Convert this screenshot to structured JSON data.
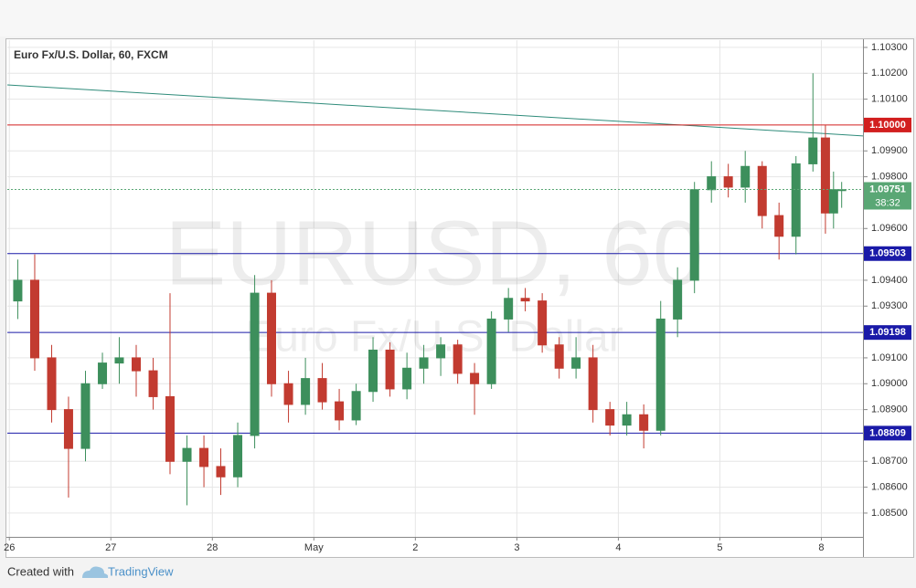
{
  "chart_data": {
    "type": "candlestick",
    "title": "Euro Fx/U.S. Dollar, 60, FXCM",
    "watermark": "EURUSD, 60",
    "watermark_subtitle": "Euro Fx/U.S. Dollar",
    "up_color": "#3d8f5c",
    "down_color": "#c23b30",
    "x": [
      0.083,
      0.25,
      0.417,
      0.583,
      0.75,
      0.917,
      1.083,
      1.25,
      1.417,
      1.583,
      1.75,
      1.917,
      2.083,
      2.25,
      2.417,
      2.583,
      2.75,
      2.917,
      3.083,
      3.25,
      3.417,
      3.583,
      3.75,
      3.917,
      4.083,
      4.25,
      4.417,
      4.583,
      4.75,
      4.917,
      5.083,
      5.25,
      5.417,
      5.583,
      5.75,
      5.917,
      6.083,
      6.25,
      6.417,
      6.583,
      6.75,
      6.917,
      7.083,
      7.25,
      7.417,
      7.583,
      7.75,
      7.917,
      8.04,
      8.12,
      8.2
    ],
    "open": [
      1.0932,
      1.094,
      1.091,
      1.089,
      1.0875,
      1.09,
      1.0908,
      1.091,
      1.0905,
      1.0895,
      1.087,
      1.0875,
      1.0868,
      1.0864,
      1.088,
      1.0935,
      1.09,
      1.0892,
      1.0902,
      1.0893,
      1.0886,
      1.0897,
      1.0913,
      1.0898,
      1.0906,
      1.091,
      1.0915,
      1.0904,
      1.09,
      1.0925,
      1.0933,
      1.0932,
      1.0915,
      1.0906,
      1.091,
      1.089,
      1.0884,
      1.0888,
      1.0882,
      1.0925,
      1.094,
      1.0975,
      1.098,
      1.0976,
      1.0984,
      1.0965,
      1.0957,
      1.0985,
      1.0995,
      1.0966,
      1.0975
    ],
    "high": [
      1.0948,
      1.095,
      1.0915,
      1.0895,
      1.0905,
      1.0912,
      1.0918,
      1.0915,
      1.091,
      1.0935,
      1.088,
      1.088,
      1.0875,
      1.0885,
      1.0942,
      1.094,
      1.0905,
      1.091,
      1.0908,
      1.0898,
      1.09,
      1.0918,
      1.0916,
      1.0912,
      1.0915,
      1.0918,
      1.0917,
      1.0908,
      1.0928,
      1.0937,
      1.0937,
      1.0935,
      1.0918,
      1.0918,
      1.0915,
      1.0893,
      1.0893,
      1.0892,
      1.0932,
      1.0945,
      1.0978,
      1.0986,
      1.0985,
      1.099,
      1.0986,
      1.097,
      1.0988,
      1.102,
      1.1,
      1.0982,
      1.0978
    ],
    "low": [
      1.0925,
      1.0905,
      1.0885,
      1.0856,
      1.087,
      1.0898,
      1.09,
      1.0895,
      1.089,
      1.0865,
      1.0853,
      1.086,
      1.0857,
      1.086,
      1.0875,
      1.0895,
      1.0885,
      1.0888,
      1.089,
      1.0882,
      1.0884,
      1.0893,
      1.0895,
      1.0894,
      1.09,
      1.0903,
      1.09,
      1.0888,
      1.0898,
      1.092,
      1.0928,
      1.0912,
      1.0902,
      1.0902,
      1.0885,
      1.088,
      1.088,
      1.0875,
      1.088,
      1.0918,
      1.0935,
      1.097,
      1.0972,
      1.097,
      1.096,
      1.0948,
      1.095,
      1.0982,
      1.0958,
      1.096,
      1.0968
    ],
    "close": [
      1.094,
      1.091,
      1.089,
      1.0875,
      1.09,
      1.0908,
      1.091,
      1.0905,
      1.0895,
      1.087,
      1.0875,
      1.0868,
      1.0864,
      1.088,
      1.0935,
      1.09,
      1.0892,
      1.0902,
      1.0893,
      1.0886,
      1.0897,
      1.0913,
      1.0898,
      1.0906,
      1.091,
      1.0915,
      1.0904,
      1.09,
      1.0925,
      1.0933,
      1.0932,
      1.0915,
      1.0906,
      1.091,
      1.089,
      1.0884,
      1.0888,
      1.0882,
      1.0925,
      1.094,
      1.0975,
      1.098,
      1.0976,
      1.0984,
      1.0965,
      1.0957,
      1.0985,
      1.0995,
      1.0966,
      1.0975,
      1.0975
    ],
    "xlim": [
      -0.02,
      8.41
    ],
    "xticks": [
      {
        "value": 0,
        "label": "26"
      },
      {
        "value": 1,
        "label": "27"
      },
      {
        "value": 2,
        "label": "28"
      },
      {
        "value": 3,
        "label": "May"
      },
      {
        "value": 4,
        "label": "2"
      },
      {
        "value": 5,
        "label": "3"
      },
      {
        "value": 6,
        "label": "4"
      },
      {
        "value": 7,
        "label": "5"
      },
      {
        "value": 8,
        "label": "8"
      }
    ],
    "ylim": [
      1.08408,
      1.10328
    ],
    "yticks": [
      {
        "value": 1.103,
        "label": "1.10300"
      },
      {
        "value": 1.102,
        "label": "1.10200"
      },
      {
        "value": 1.101,
        "label": "1.10100"
      },
      {
        "value": 1.099,
        "label": "1.09900"
      },
      {
        "value": 1.098,
        "label": "1.09800"
      },
      {
        "value": 1.096,
        "label": "1.09600"
      },
      {
        "value": 1.094,
        "label": "1.09400"
      },
      {
        "value": 1.093,
        "label": "1.09300"
      },
      {
        "value": 1.091,
        "label": "1.09100"
      },
      {
        "value": 1.09,
        "label": "1.09000"
      },
      {
        "value": 1.089,
        "label": "1.08900"
      },
      {
        "value": 1.087,
        "label": "1.08700"
      },
      {
        "value": 1.086,
        "label": "1.08600"
      },
      {
        "value": 1.085,
        "label": "1.08500"
      }
    ],
    "grid": true,
    "levels": [
      {
        "value": 1.1,
        "label": "1.10000",
        "color": "#d21f1f"
      },
      {
        "value": 1.09503,
        "label": "1.09503",
        "color": "#1a1aa8"
      },
      {
        "value": 1.09198,
        "label": "1.09198",
        "color": "#1a1aa8"
      },
      {
        "value": 1.08809,
        "label": "1.08809",
        "color": "#1a1aa8"
      }
    ],
    "trendline": {
      "x": [
        -0.02,
        8.41
      ],
      "y": [
        1.10155,
        1.09958
      ],
      "color": "#2e8b7a"
    },
    "current_price": {
      "value": 1.09751,
      "label": "1.09751",
      "countdown": "38:32",
      "color": "#5aa775"
    }
  },
  "footer": {
    "created_with": "Created with",
    "brand": "TradingView"
  }
}
